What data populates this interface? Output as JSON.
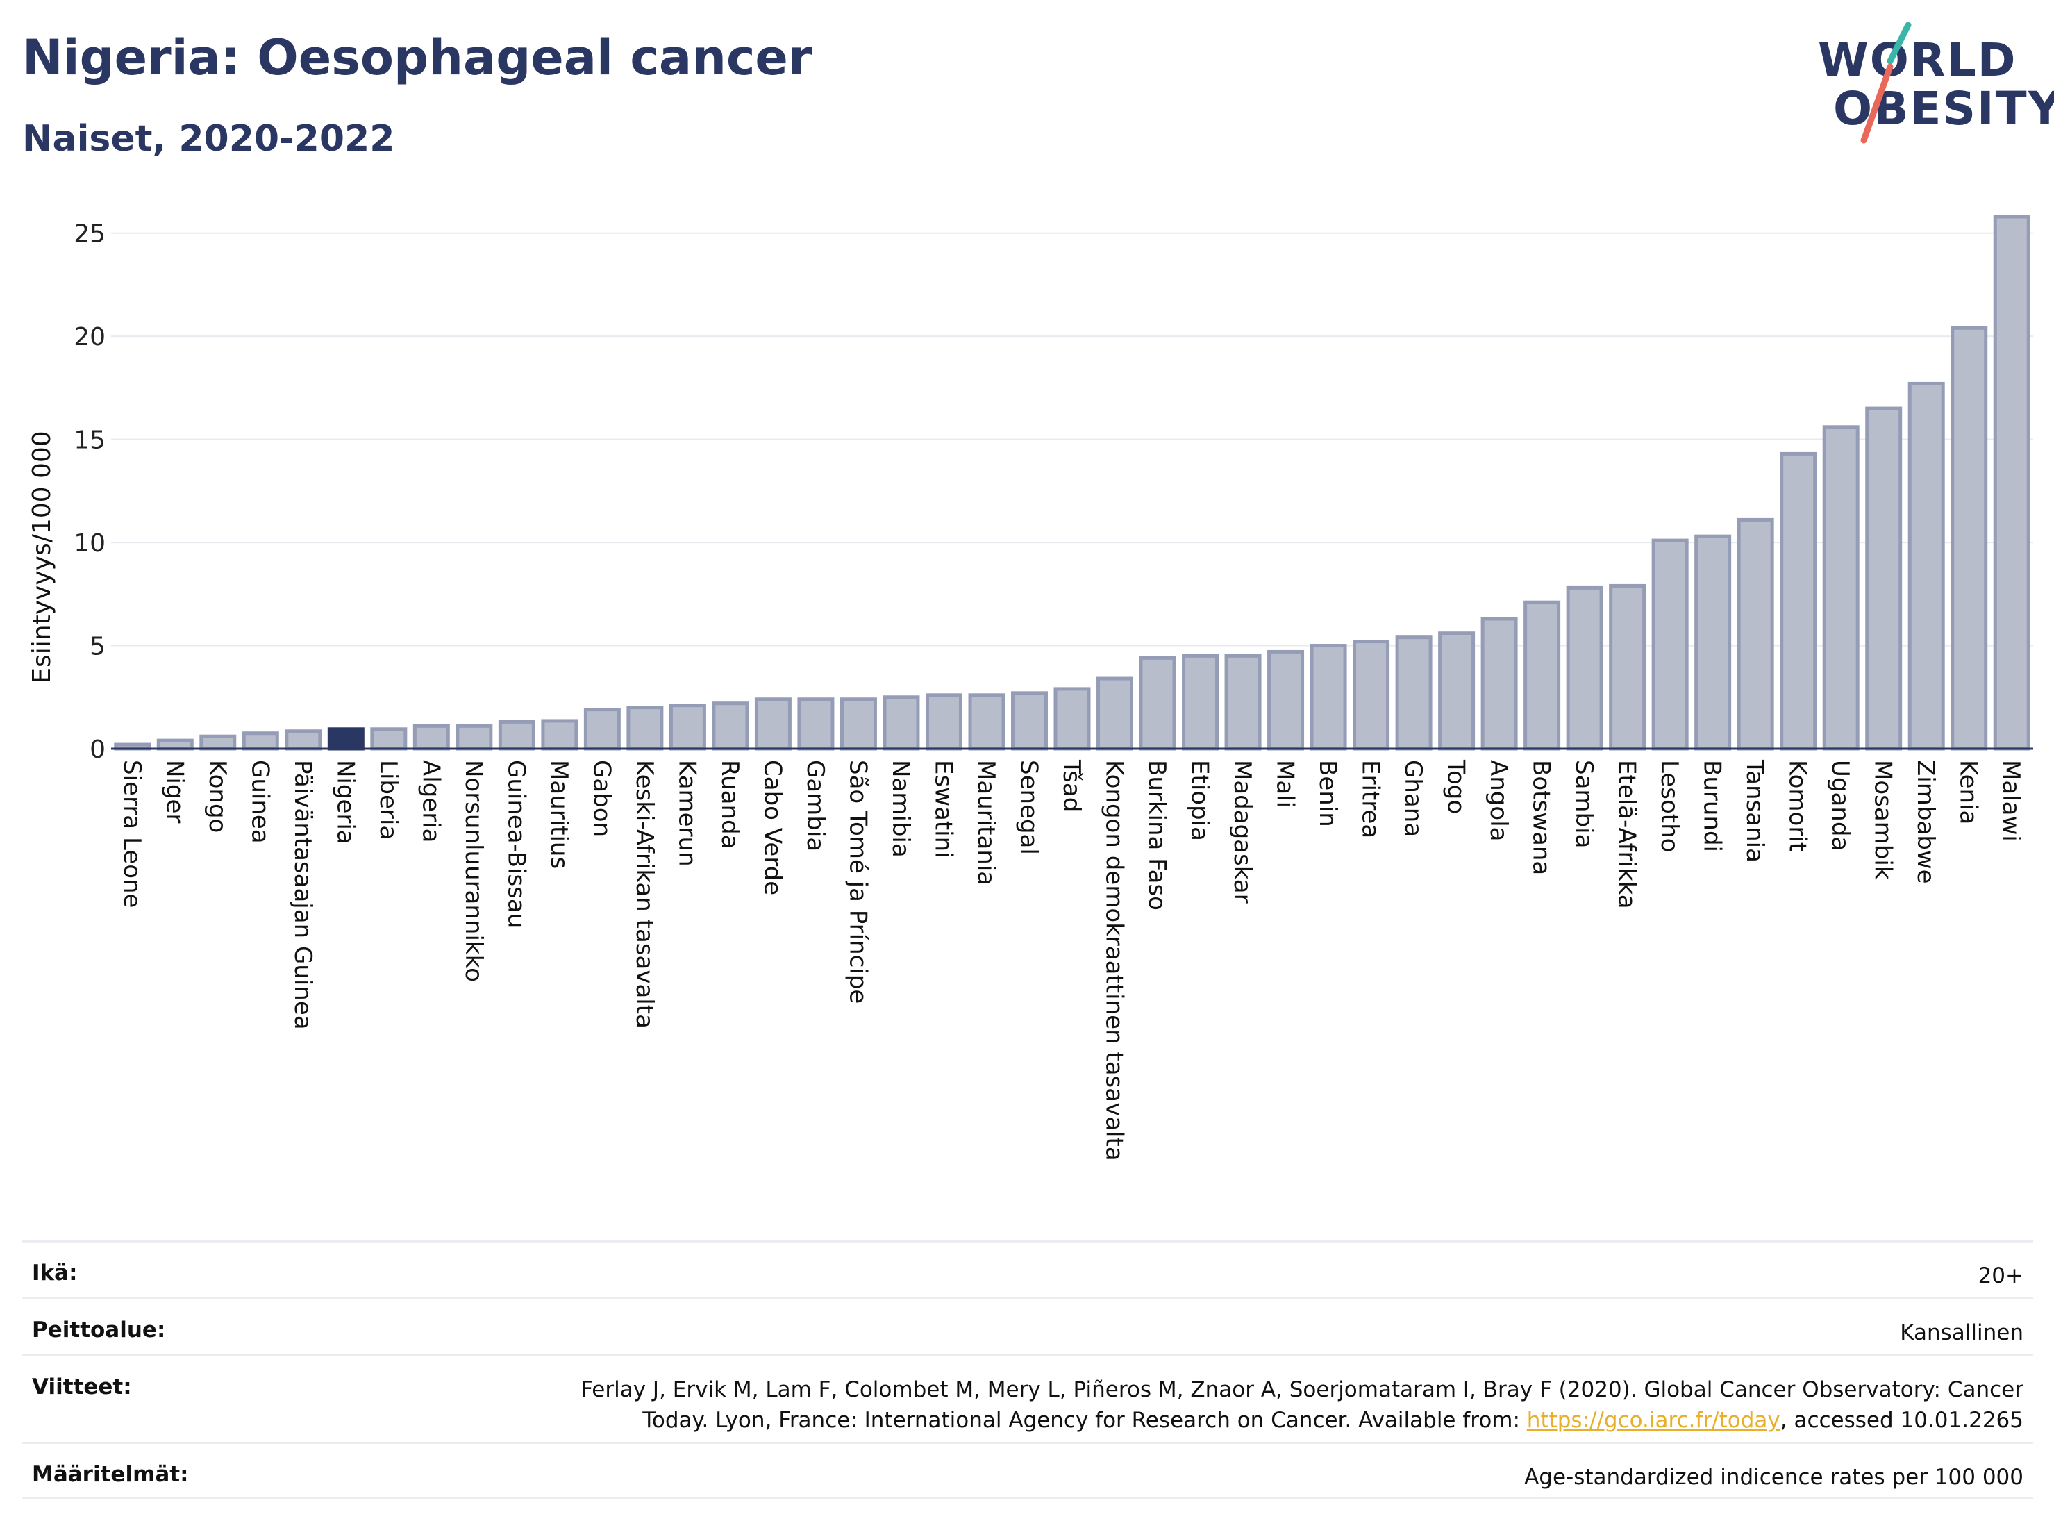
{
  "header": {
    "title": "Nigeria: Oesophageal cancer",
    "subtitle": "Naiset, 2020-2022"
  },
  "logo": {
    "line1": "WORLD",
    "line2": "OBESITY",
    "slash_colors": [
      "#3ab6a8",
      "#e8685a"
    ]
  },
  "chart_data": {
    "type": "bar",
    "ylabel": "Esiintyvyys/100 000",
    "ylim": [
      0,
      26
    ],
    "yticks": [
      0,
      5,
      10,
      15,
      20,
      25
    ],
    "grid": true,
    "highlight": "Nigeria",
    "colors": {
      "bar": "#b8bdcc",
      "bar_edge": "#959cb6",
      "highlight": "#2b3763",
      "grid": "#e9e9ef"
    },
    "categories": [
      "Sierra Leone",
      "Niger",
      "Kongo",
      "Guinea",
      "Päiväntasaajan Guinea",
      "Nigeria",
      "Liberia",
      "Algeria",
      "Norsunluurannikko",
      "Guinea-Bissau",
      "Mauritius",
      "Gabon",
      "Keski-Afrikan tasavalta",
      "Kamerun",
      "Ruanda",
      "Cabo Verde",
      "Gambia",
      "São Tomé ja Príncipe",
      "Namibia",
      "Eswatini",
      "Mauritania",
      "Senegal",
      "Tšad",
      "Kongon demokraattinen tasavalta",
      "Burkina Faso",
      "Etiopia",
      "Madagaskar",
      "Mali",
      "Benin",
      "Eritrea",
      "Ghana",
      "Togo",
      "Angola",
      "Botswana",
      "Sambia",
      "Etelä-Afrikka",
      "Lesotho",
      "Burundi",
      "Tansania",
      "Komorit",
      "Uganda",
      "Mosambik",
      "Zimbabwe",
      "Kenia",
      "Malawi"
    ],
    "values": [
      0.2,
      0.4,
      0.6,
      0.75,
      0.85,
      0.95,
      0.95,
      1.1,
      1.1,
      1.3,
      1.35,
      1.9,
      2.0,
      2.1,
      2.2,
      2.4,
      2.4,
      2.4,
      2.5,
      2.6,
      2.6,
      2.7,
      2.9,
      3.4,
      4.4,
      4.5,
      4.5,
      4.7,
      5.0,
      5.2,
      5.4,
      5.6,
      6.3,
      7.1,
      7.8,
      7.9,
      10.1,
      10.3,
      11.1,
      14.3,
      15.6,
      16.5,
      17.7,
      20.4,
      25.8
    ]
  },
  "info": {
    "age_label": "Ikä:",
    "age_value": "20+",
    "coverage_label": "Peittoalue:",
    "coverage_value": "Kansallinen",
    "refs_label": "Viitteet:",
    "refs_text_1": "Ferlay J, Ervik M, Lam F, Colombet M, Mery L, Piñeros M, Znaor A, Soerjomataram I, Bray F (2020). Global Cancer Observatory: Cancer",
    "refs_text_2": "Today. Lyon, France: International Agency for Research on Cancer. Available from: ",
    "refs_link": "https://gco.iarc.fr/today",
    "refs_text_3": ", accessed 10.01.2265",
    "defs_label": "Määritelmät:",
    "defs_value": "Age-standardized indicence rates per 100 000"
  }
}
